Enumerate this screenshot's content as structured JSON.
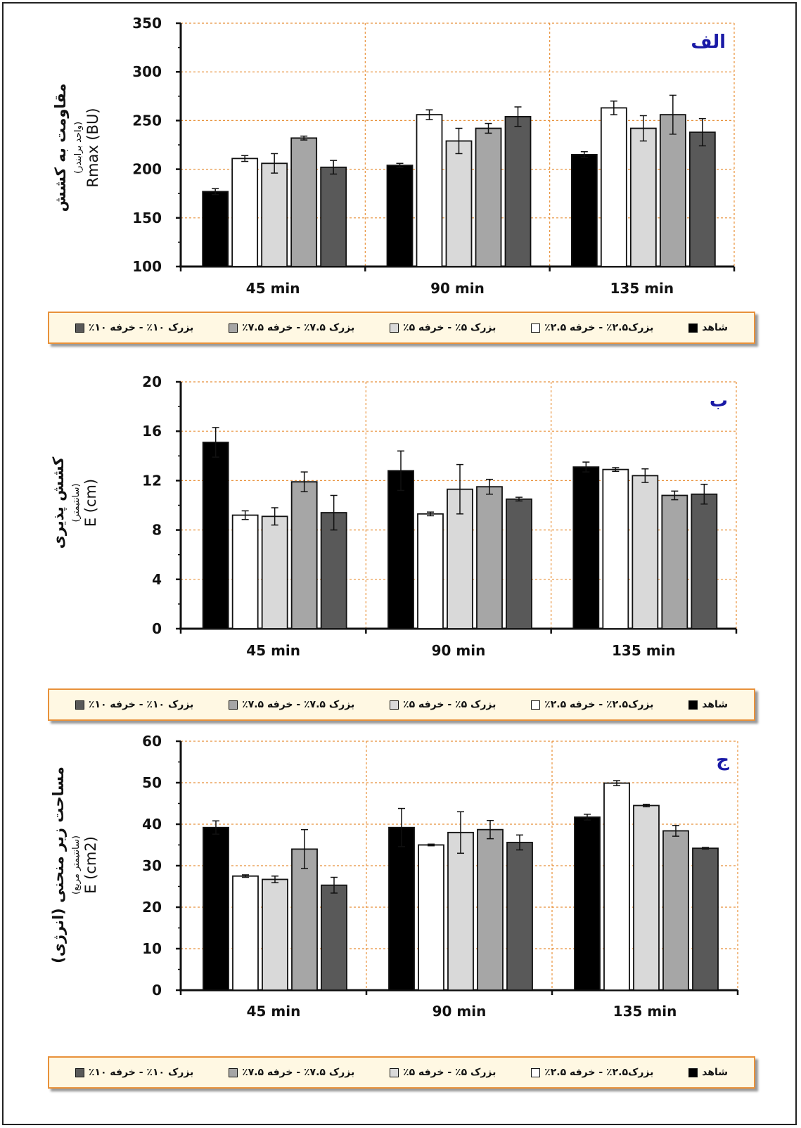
{
  "legend": [
    {
      "label": "شاهد",
      "color": "#000000"
    },
    {
      "label": "بزرک۲.۵٪ - خرفه ۲.۵٪",
      "color": "#ffffff"
    },
    {
      "label": "بزرک ۵٪ - خرفه ۵٪",
      "color": "#d9d9d9"
    },
    {
      "label": "بزرک ۷.۵٪ - خرفه ۷.۵٪",
      "color": "#a6a6a6"
    },
    {
      "label": "بزرک ۱۰٪ - خرفه ۱۰٪",
      "color": "#595959"
    }
  ],
  "chart_data": [
    {
      "type": "bar",
      "panel_label": "الف",
      "ylabel_lines": [
        "مقاومت به کشش",
        "(واحد برابندر)",
        "Rmax (BU)"
      ],
      "categories": [
        "45 min",
        "90 min",
        "135 min"
      ],
      "ylim": [
        100,
        350
      ],
      "yticks": [
        100,
        150,
        200,
        250,
        300,
        350
      ],
      "grid": true,
      "series": [
        {
          "name": "شاهد",
          "values": [
            177,
            204,
            215
          ],
          "errors": [
            3,
            2,
            3
          ]
        },
        {
          "name": "بزرک۲.۵٪ - خرفه ۲.۵٪",
          "values": [
            211,
            256,
            263
          ],
          "errors": [
            3,
            5,
            7
          ]
        },
        {
          "name": "بزرک ۵٪ - خرفه ۵٪",
          "values": [
            206,
            229,
            242
          ],
          "errors": [
            10,
            13,
            13
          ]
        },
        {
          "name": "بزرک ۷.۵٪ - خرفه ۷.۵٪",
          "values": [
            232,
            242,
            256
          ],
          "errors": [
            2,
            5,
            20
          ]
        },
        {
          "name": "بزرک ۱۰٪ - خرفه ۱۰٪",
          "values": [
            202,
            254,
            238
          ],
          "errors": [
            7,
            10,
            14
          ]
        }
      ]
    },
    {
      "type": "bar",
      "panel_label": "ب",
      "ylabel_lines": [
        "کشش پذیری",
        "(سانتیمتر)",
        "E (cm)"
      ],
      "categories": [
        "45 min",
        "90 min",
        "135 min"
      ],
      "ylim": [
        0,
        20
      ],
      "yticks": [
        0,
        4,
        8,
        12,
        16,
        20
      ],
      "grid": true,
      "series": [
        {
          "name": "شاهد",
          "values": [
            15.1,
            12.8,
            13.1
          ],
          "errors": [
            1.2,
            1.6,
            0.4
          ]
        },
        {
          "name": "بزرک۲.۵٪ - خرفه ۲.۵٪",
          "values": [
            9.2,
            9.3,
            12.9
          ],
          "errors": [
            0.35,
            0.15,
            0.15
          ]
        },
        {
          "name": "بزرک ۵٪ - خرفه ۵٪",
          "values": [
            9.1,
            11.3,
            12.4
          ],
          "errors": [
            0.7,
            2.0,
            0.55
          ]
        },
        {
          "name": "بزرک ۷.۵٪ - خرفه ۷.۵٪",
          "values": [
            11.9,
            11.5,
            10.8
          ],
          "errors": [
            0.8,
            0.6,
            0.35
          ]
        },
        {
          "name": "بزرک ۱۰٪ - خرفه ۱۰٪",
          "values": [
            9.4,
            10.5,
            10.9
          ],
          "errors": [
            1.4,
            0.15,
            0.8
          ]
        }
      ]
    },
    {
      "type": "bar",
      "panel_label": "ج",
      "ylabel_lines": [
        "مساحت زیر منحنی (انرژی)",
        "(سانتیمتر مربع)",
        "E (cm2)"
      ],
      "categories": [
        "45 min",
        "90 min",
        "135 min"
      ],
      "ylim": [
        0,
        60
      ],
      "yticks": [
        0,
        10,
        20,
        30,
        40,
        50,
        60
      ],
      "grid": true,
      "series": [
        {
          "name": "شاهد",
          "values": [
            39.2,
            39.2,
            41.7
          ],
          "errors": [
            1.6,
            4.6,
            0.7
          ]
        },
        {
          "name": "بزرک۲.۵٪ - خرفه ۲.۵٪",
          "values": [
            27.5,
            35.0,
            49.9
          ],
          "errors": [
            0.3,
            0.2,
            0.6
          ]
        },
        {
          "name": "بزرک ۵٪ - خرفه ۵٪",
          "values": [
            26.7,
            38.0,
            44.5
          ],
          "errors": [
            0.8,
            5.0,
            0.3
          ]
        },
        {
          "name": "بزرک ۷.۵٪ - خرفه ۷.۵٪",
          "values": [
            34.0,
            38.7,
            38.4
          ],
          "errors": [
            4.7,
            2.2,
            1.3
          ]
        },
        {
          "name": "بزرک ۱۰٪ - خرفه ۱۰٪",
          "values": [
            25.3,
            35.6,
            34.2
          ],
          "errors": [
            1.9,
            1.8,
            0.2
          ]
        }
      ]
    }
  ]
}
